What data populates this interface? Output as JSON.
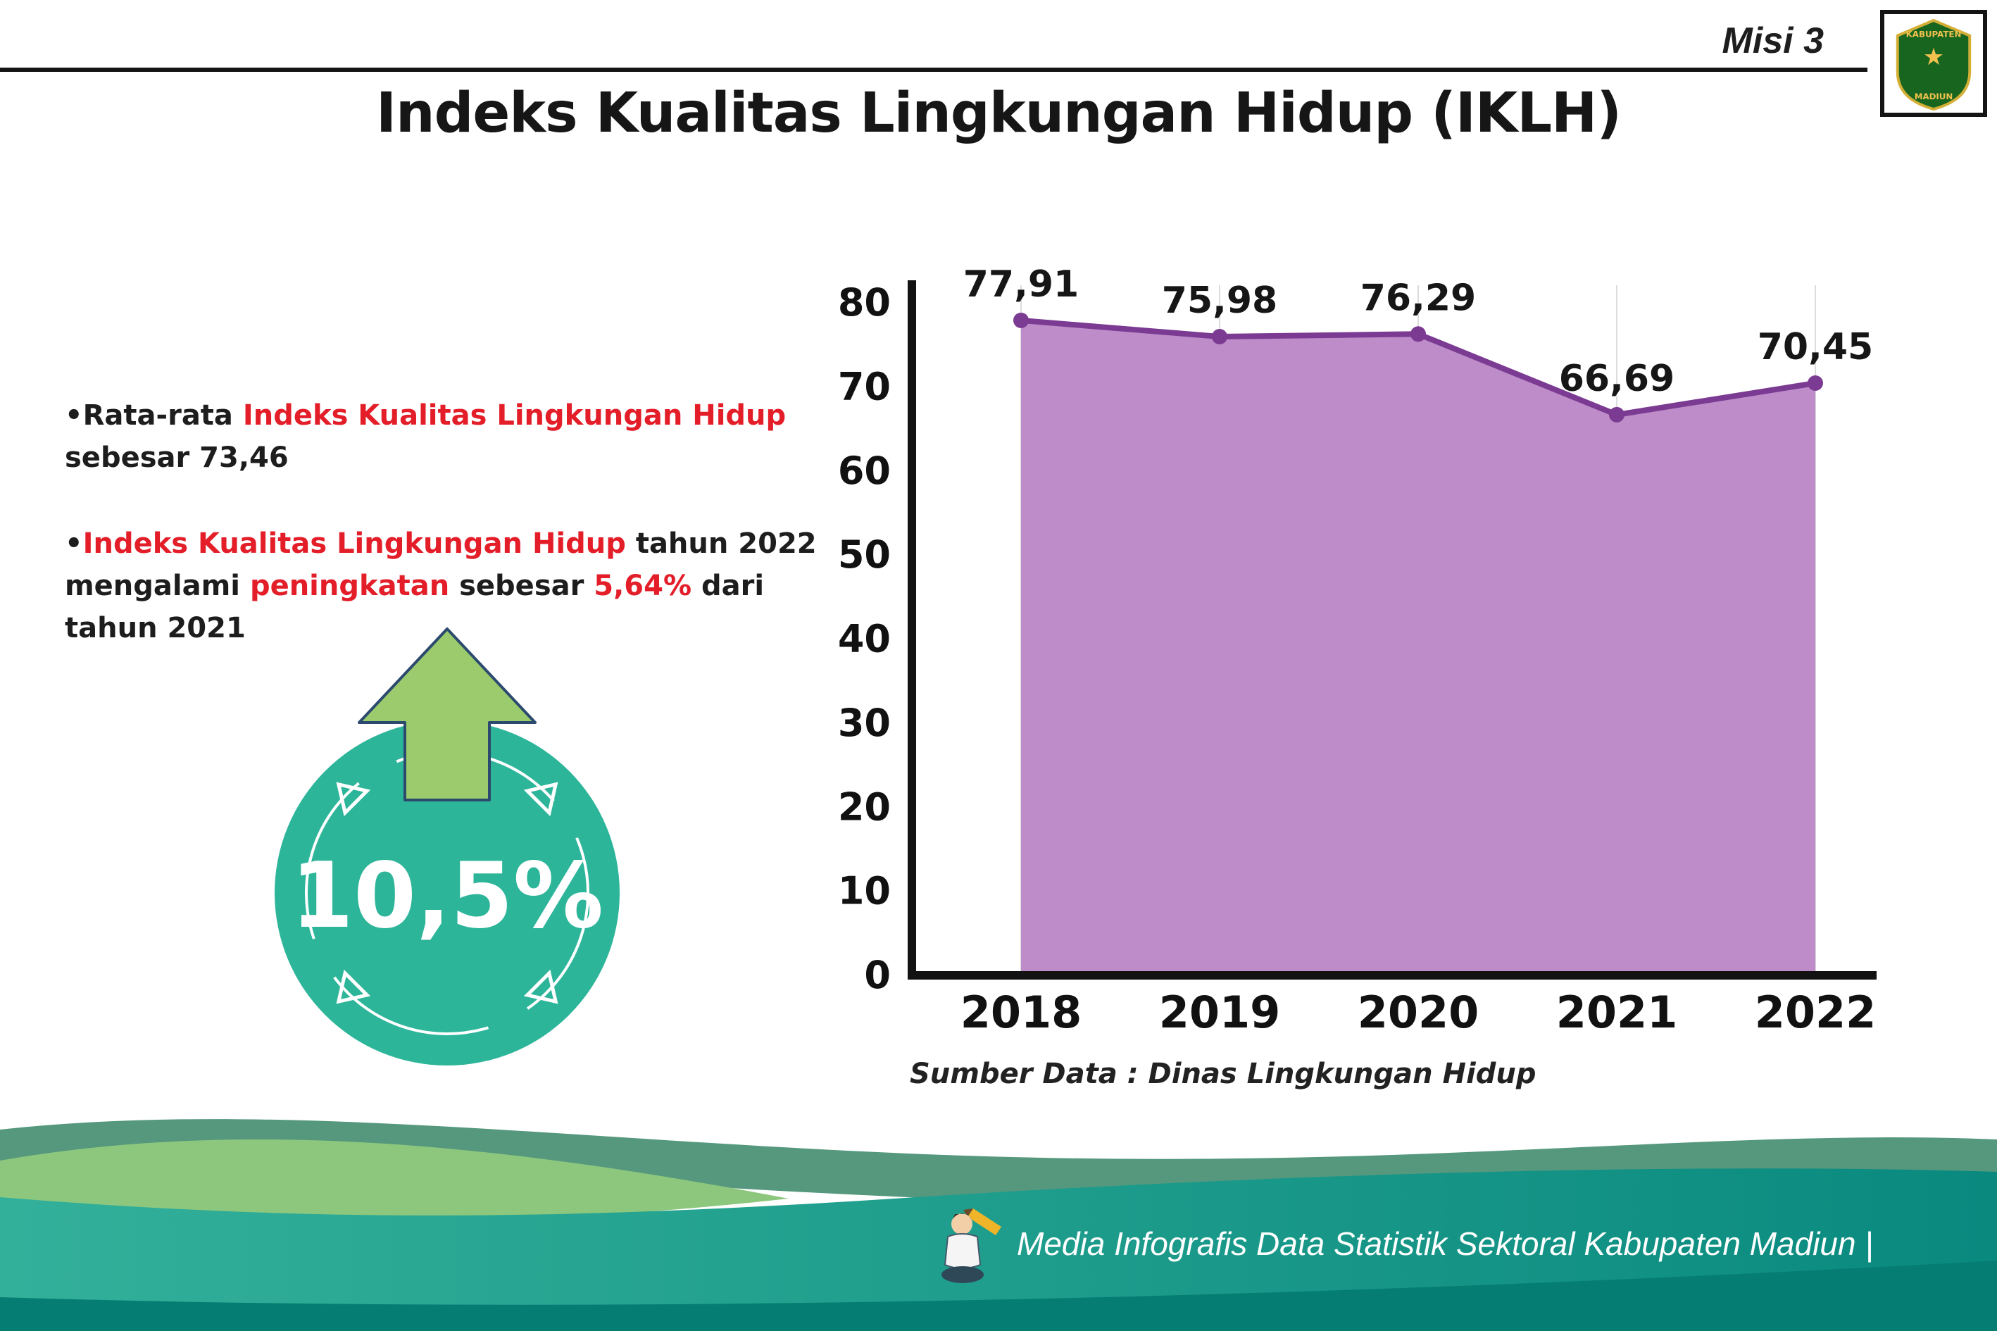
{
  "header": {
    "misi_label": "Misi 3",
    "logo": {
      "top_text": "KABUPATEN",
      "bottom_text": "MADIUN",
      "star": "★"
    }
  },
  "title": "Indeks Kualitas Lingkungan Hidup (IKLH)",
  "bullets": {
    "marker": "•",
    "b1": {
      "s0": "Rata-rata ",
      "s1": "Indeks Kualitas Lingkungan Hidup",
      "s2": " sebesar 73,46"
    },
    "b2": {
      "s0": "Indeks Kualitas Lingkungan Hidup",
      "s1": " tahun 2022 mengalami ",
      "s2": "peningkatan",
      "s3": " sebesar ",
      "s4": "5,64%",
      "s5": " dari tahun 2021"
    }
  },
  "badge": {
    "value": "10,5%"
  },
  "chart_data": {
    "type": "area",
    "title": "",
    "categories": [
      "2018",
      "2019",
      "2020",
      "2021",
      "2022"
    ],
    "values": [
      77.91,
      75.98,
      76.29,
      66.69,
      70.45
    ],
    "point_labels": [
      "77,91",
      "75,98",
      "76,29",
      "66,69",
      "70,45"
    ],
    "xlabel": "",
    "ylabel": "",
    "ylim": [
      0,
      80
    ],
    "yticks": [
      0,
      10,
      20,
      30,
      40,
      50,
      60,
      70,
      80
    ],
    "grid": "faint vertical gridlines at each year",
    "legend": "none",
    "fill_color": "#bd8cc9",
    "line_color": "#7b3b92",
    "source": "Sumber Data : Dinas Lingkungan Hidup"
  },
  "footer": {
    "credit": "Media Infografis Data Statistik Sektoral Kabupaten Madiun |"
  },
  "colors": {
    "accent_red": "#e31e29",
    "badge_teal": "#2db59a",
    "arrow_green": "#9ccb6d",
    "area_purple": "#bd8cc9",
    "line_purple": "#7b3b92",
    "footer_teal": "#0a8a7f"
  }
}
